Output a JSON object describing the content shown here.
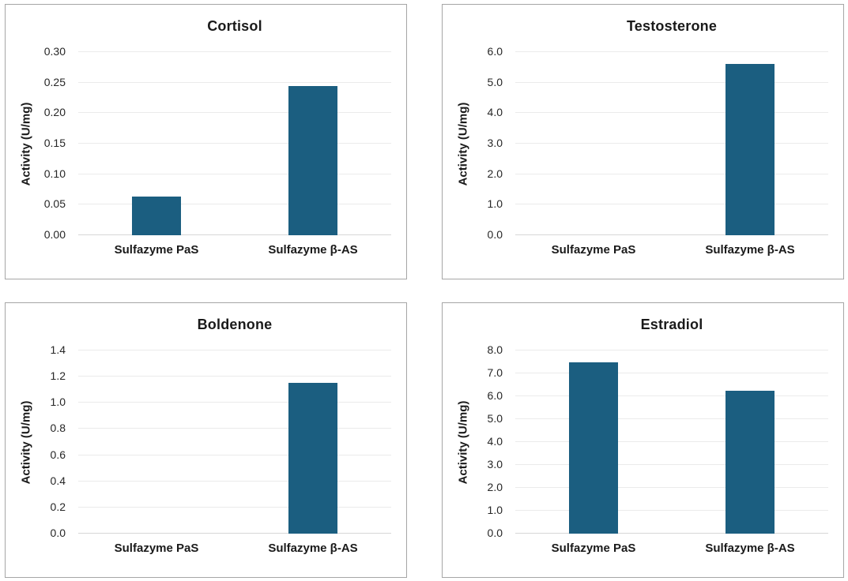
{
  "page": {
    "background": "#ffffff",
    "text_color": "#1f1f1f"
  },
  "styles": {
    "bar_color": "#1B5E80",
    "gridline_color": "#ebebeb",
    "baseline_color": "#d7d7d7",
    "panel_border_color": "#a6a6a6"
  },
  "chart_data": [
    {
      "type": "bar",
      "title": "Cortisol",
      "xlabel": "",
      "ylabel": "Activity (U/mg)",
      "categories": [
        "Sulfazyme PaS",
        "Sulfazyme β-AS"
      ],
      "values": [
        0.063,
        0.245
      ],
      "ylim": [
        0,
        0.3
      ],
      "ytick_labels": [
        "0.00",
        "0.05",
        "0.10",
        "0.15",
        "0.20",
        "0.25",
        "0.30"
      ],
      "grid": true,
      "legend": false
    },
    {
      "type": "bar",
      "title": "Testosterone",
      "xlabel": "",
      "ylabel": "Activity (U/mg)",
      "categories": [
        "Sulfazyme PaS",
        "Sulfazyme β-AS"
      ],
      "values": [
        0.0,
        5.6
      ],
      "ylim": [
        0,
        6.0
      ],
      "ytick_labels": [
        "0.0",
        "1.0",
        "2.0",
        "3.0",
        "4.0",
        "5.0",
        "6.0"
      ],
      "grid": true,
      "legend": false
    },
    {
      "type": "bar",
      "title": "Boldenone",
      "xlabel": "",
      "ylabel": "Activity (U/mg)",
      "categories": [
        "Sulfazyme PaS",
        "Sulfazyme β-AS"
      ],
      "values": [
        0.0,
        1.15
      ],
      "ylim": [
        0,
        1.4
      ],
      "ytick_labels": [
        "0.0",
        "0.2",
        "0.4",
        "0.6",
        "0.8",
        "1.0",
        "1.2",
        "1.4"
      ],
      "grid": true,
      "legend": false
    },
    {
      "type": "bar",
      "title": "Estradiol",
      "xlabel": "",
      "ylabel": "Activity (U/mg)",
      "categories": [
        "Sulfazyme PaS",
        "Sulfazyme β-AS"
      ],
      "values": [
        7.5,
        6.25
      ],
      "ylim": [
        0,
        8.0
      ],
      "ytick_labels": [
        "0.0",
        "1.0",
        "2.0",
        "3.0",
        "4.0",
        "5.0",
        "6.0",
        "7.0",
        "8.0"
      ],
      "grid": true,
      "legend": false
    }
  ]
}
